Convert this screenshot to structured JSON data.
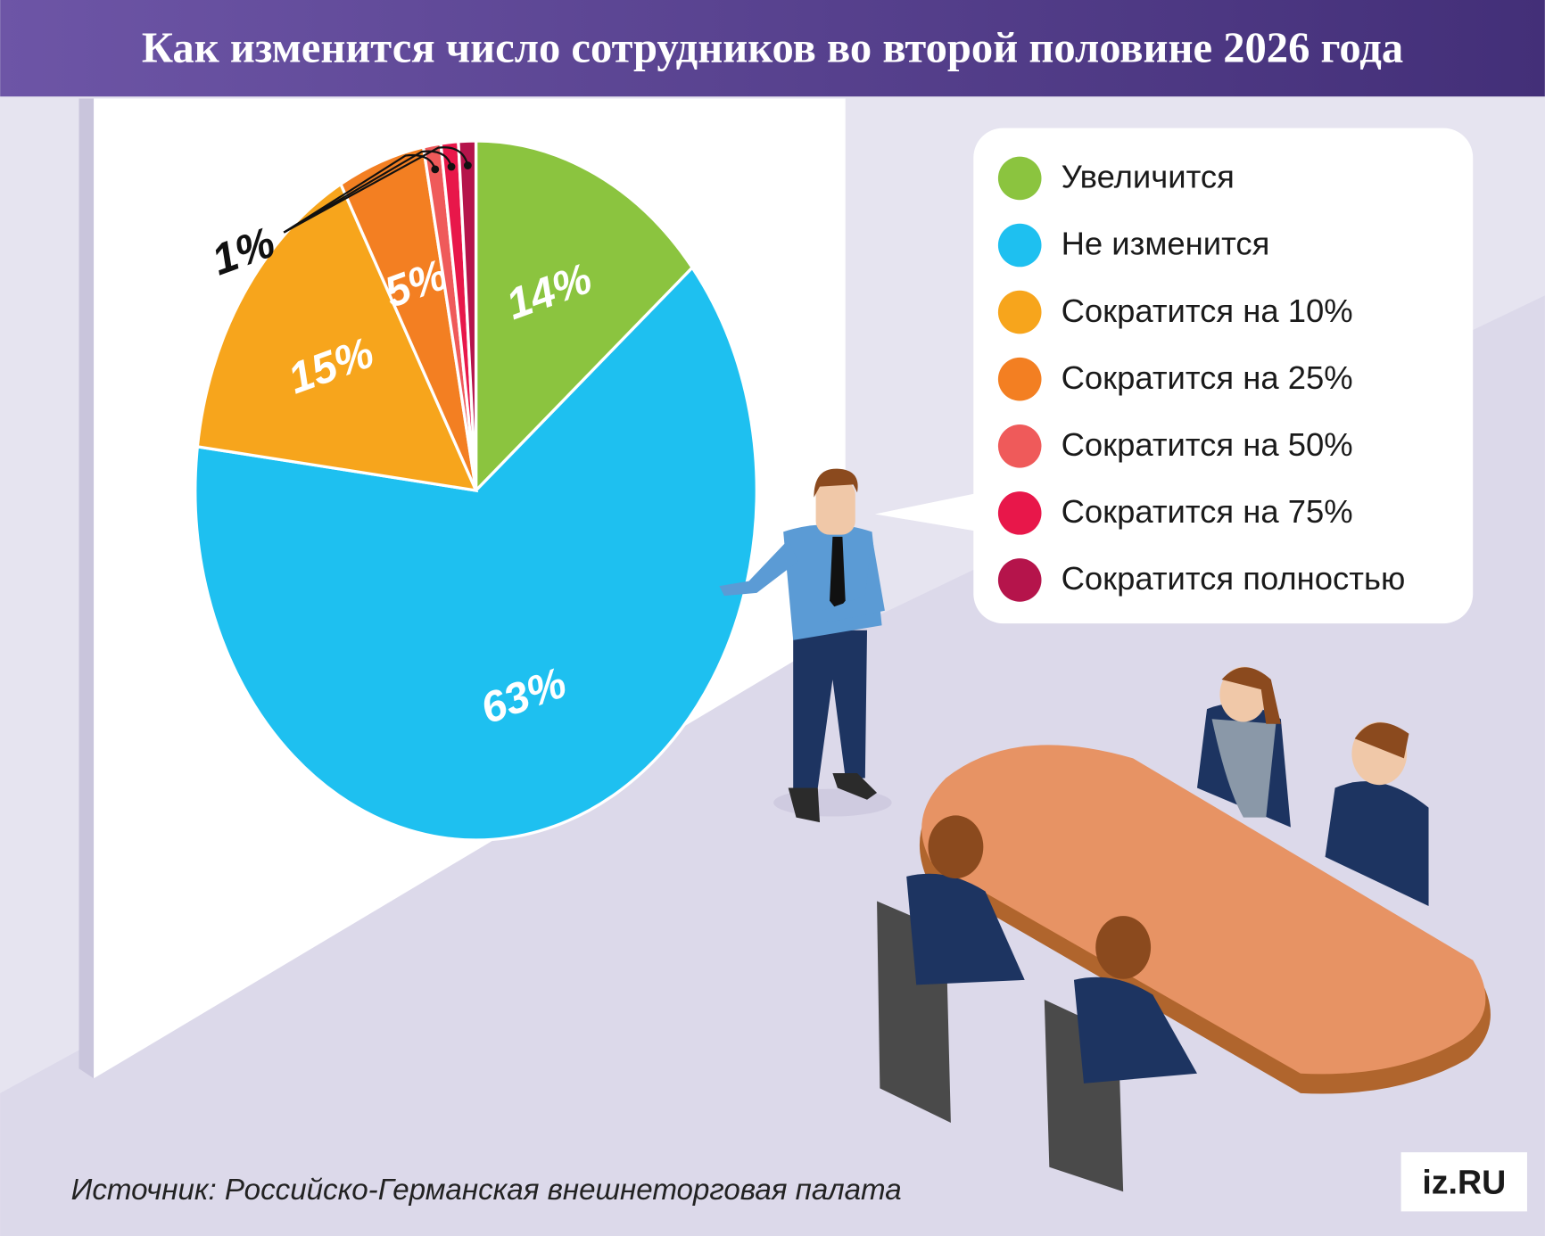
{
  "chart_data": {
    "type": "pie",
    "title": "Как изменится число сотрудников во второй половине 2026 года",
    "categories": [
      "Увеличится",
      "Не изменится",
      "Сократится на 10%",
      "Сократится на 25%",
      "Сократится на 50%",
      "Сократится на 75%",
      "Сократится полностью"
    ],
    "values": [
      14,
      63,
      15,
      5,
      1,
      1,
      1
    ],
    "value_labels": [
      "14%",
      "63%",
      "15%",
      "5%",
      "1%",
      null,
      null
    ],
    "colors": [
      "#8bc43f",
      "#1ec0f0",
      "#f7a51c",
      "#f37f22",
      "#ef5a5a",
      "#e8174a",
      "#b5144b"
    ]
  },
  "source": "Источник: Российско-Германская внешнеторговая палата",
  "logo": "iz.RU"
}
